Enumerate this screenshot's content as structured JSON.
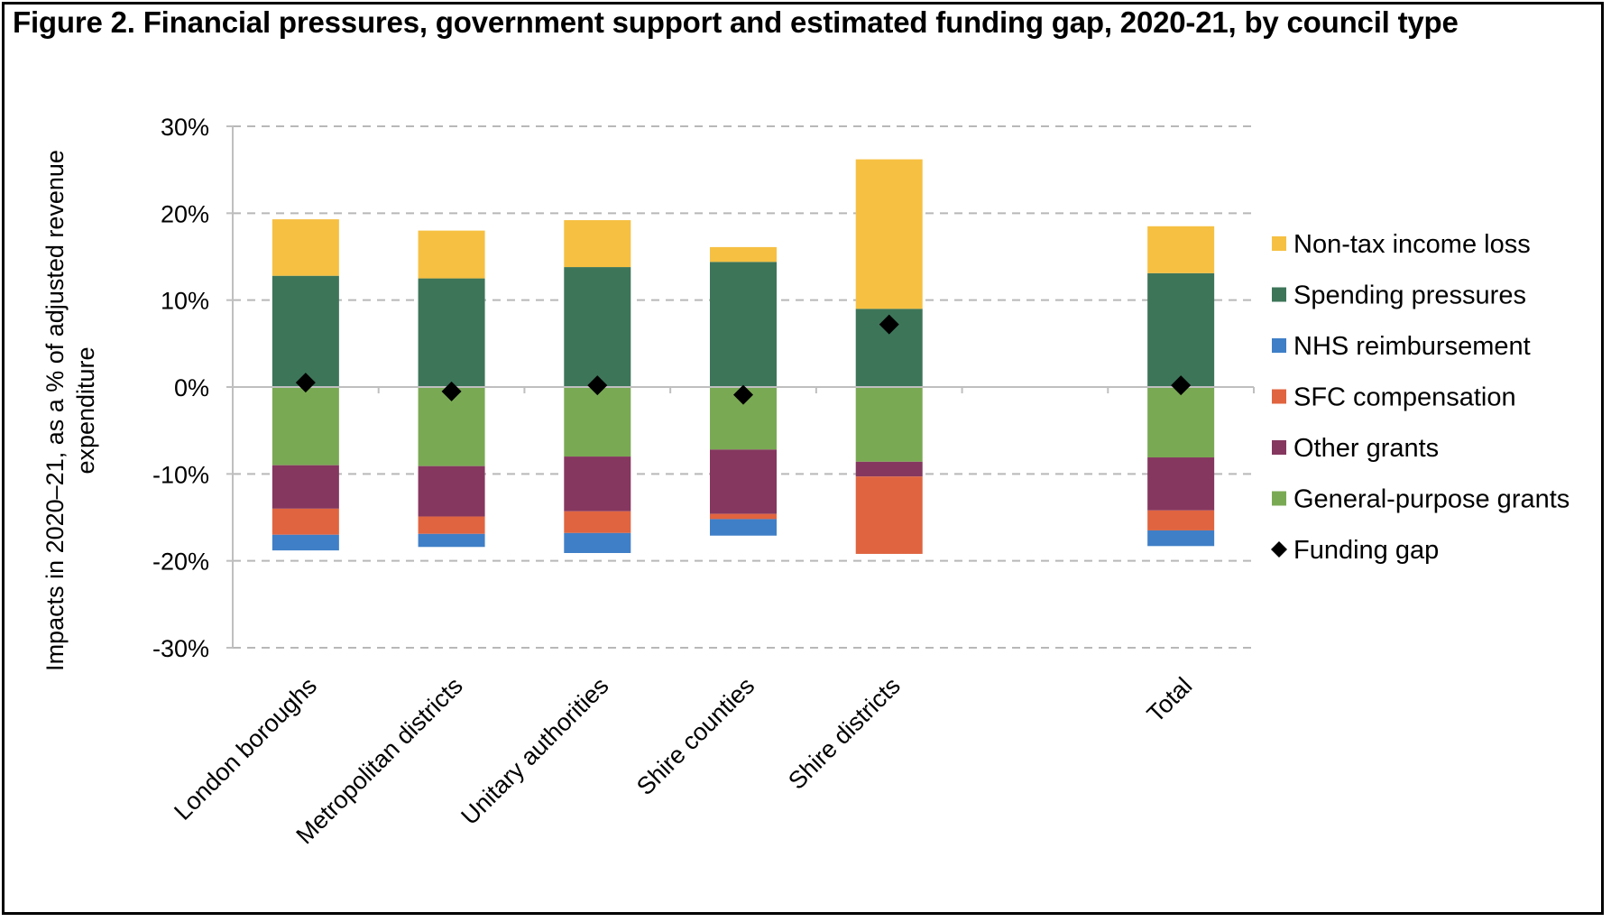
{
  "chart_data": {
    "type": "bar",
    "stacked": true,
    "title": "Figure 2. Financial pressures, government support and estimated funding gap, 2020-21, by council type",
    "ylabel_line1": "Impacts in 2020–21, as a % of adjusted revenue",
    "ylabel_line2": "expenditure",
    "ylim": [
      -30,
      30
    ],
    "yticks": [
      30,
      20,
      10,
      0,
      -10,
      -20,
      -30
    ],
    "ytick_labels": [
      "30%",
      "20%",
      "10%",
      "0%",
      "-10%",
      "-20%",
      "-30%"
    ],
    "grid": "horizontal dashed",
    "legend_position": "right",
    "categories": [
      "London boroughs",
      "Metropolitan districts",
      "Unitary authorities",
      "Shire counties",
      "Shire districts",
      "",
      "Total"
    ],
    "series": [
      {
        "name": "General-purpose grants",
        "color": "#7aa954",
        "values": [
          -9.0,
          -9.1,
          -8.0,
          -7.2,
          -8.6,
          null,
          -8.1
        ]
      },
      {
        "name": "Other grants",
        "color": "#85375f",
        "values": [
          -5.0,
          -5.8,
          -6.3,
          -7.4,
          -1.7,
          null,
          -6.1
        ]
      },
      {
        "name": "SFC compensation",
        "color": "#e06440",
        "values": [
          -3.0,
          -2.0,
          -2.5,
          -0.6,
          -8.9,
          null,
          -2.3
        ]
      },
      {
        "name": "NHS reimbursement",
        "color": "#3f7fc7",
        "values": [
          -1.8,
          -1.5,
          -2.3,
          -1.9,
          0,
          null,
          -1.8
        ]
      },
      {
        "name": "Spending pressures",
        "color": "#3d7559",
        "values": [
          12.8,
          12.5,
          13.8,
          14.4,
          9.0,
          null,
          13.1
        ]
      },
      {
        "name": "Non-tax income loss",
        "color": "#f6c042",
        "values": [
          6.5,
          5.5,
          5.4,
          1.7,
          17.2,
          null,
          5.4
        ]
      }
    ],
    "funding_gap": {
      "name": "Funding gap",
      "color": "#000000",
      "values": [
        0.5,
        -0.5,
        0.2,
        -0.9,
        7.2,
        null,
        0.2
      ]
    },
    "legend_order": [
      "Non-tax income loss",
      "Spending pressures",
      "NHS reimbursement",
      "SFC compensation",
      "Other grants",
      "General-purpose grants",
      "Funding gap"
    ]
  }
}
